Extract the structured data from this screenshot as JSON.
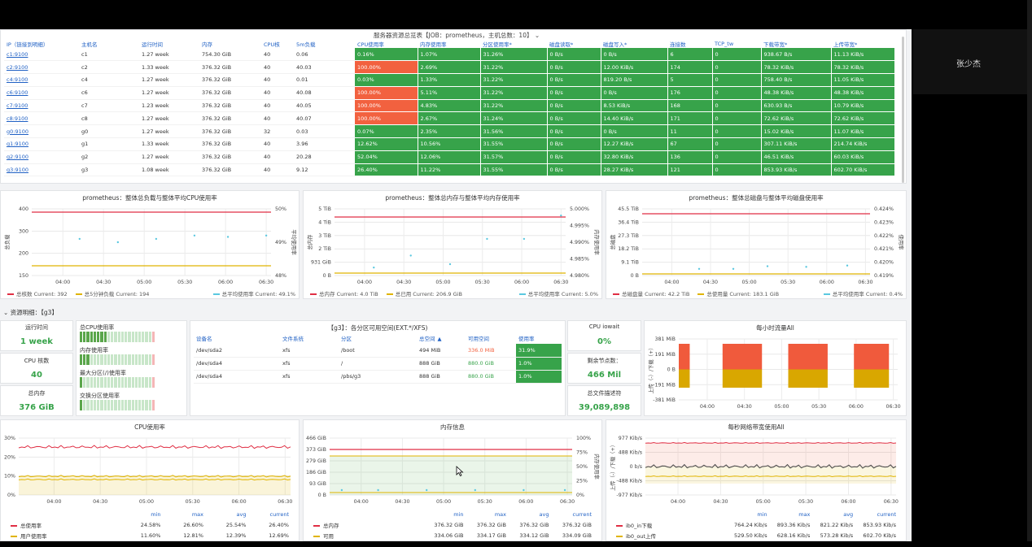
{
  "overlay": {
    "user_name": "张少杰"
  },
  "server_table": {
    "title": "服务器资源总览表【JOB：prometheus，主机总数：10】",
    "headers": [
      "IP（链接到明细）",
      "主机名",
      "运行时间",
      "内存",
      "CPU核",
      "5m负载",
      "CPU使用率",
      "内存使用率",
      "分区使用率*",
      "磁盘读取*",
      "磁盘写入*",
      "连接数",
      "TCP_tw",
      "下载带宽*",
      "上传带宽*"
    ],
    "rows": [
      [
        "c1:9100",
        "c1",
        "1.27 week",
        "754.30 GiB",
        "40",
        "0.06",
        "0.16%",
        "1.07%",
        "31.26%",
        "0 B/s",
        "0 B/s",
        "6",
        "0",
        "938.67 B/s",
        "11.13 KiB/s"
      ],
      [
        "c2:9100",
        "c2",
        "1.33 week",
        "376.32 GiB",
        "40",
        "40.03",
        "100.00%",
        "2.69%",
        "31.22%",
        "0 B/s",
        "12.00 KiB/s",
        "174",
        "0",
        "78.32 KiB/s",
        "78.32 KiB/s"
      ],
      [
        "c4:9100",
        "c4",
        "1.27 week",
        "376.32 GiB",
        "40",
        "0.01",
        "0.03%",
        "1.33%",
        "31.22%",
        "0 B/s",
        "819.20 B/s",
        "5",
        "0",
        "758.40 B/s",
        "11.05 KiB/s"
      ],
      [
        "c6:9100",
        "c6",
        "1.27 week",
        "376.32 GiB",
        "40",
        "40.08",
        "100.00%",
        "5.11%",
        "31.22%",
        "0 B/s",
        "0 B/s",
        "176",
        "0",
        "48.38 KiB/s",
        "48.38 KiB/s"
      ],
      [
        "c7:9100",
        "c7",
        "1.23 week",
        "376.32 GiB",
        "40",
        "40.05",
        "100.00%",
        "4.83%",
        "31.22%",
        "0 B/s",
        "8.53 KiB/s",
        "168",
        "0",
        "630.93 B/s",
        "10.79 KiB/s"
      ],
      [
        "c8:9100",
        "c8",
        "1.27 week",
        "376.32 GiB",
        "40",
        "40.07",
        "100.00%",
        "2.67%",
        "31.24%",
        "0 B/s",
        "14.40 KiB/s",
        "171",
        "0",
        "72.62 KiB/s",
        "72.62 KiB/s"
      ],
      [
        "g0:9100",
        "g0",
        "1.27 week",
        "376.32 GiB",
        "32",
        "0.03",
        "0.07%",
        "2.35%",
        "31.56%",
        "0 B/s",
        "0 B/s",
        "11",
        "0",
        "15.02 KiB/s",
        "11.07 KiB/s"
      ],
      [
        "g1:9100",
        "g1",
        "1.33 week",
        "376.32 GiB",
        "40",
        "3.96",
        "12.62%",
        "10.56%",
        "31.55%",
        "0 B/s",
        "12.27 KiB/s",
        "67",
        "0",
        "307.11 KiB/s",
        "214.74 KiB/s"
      ],
      [
        "g2:9100",
        "g2",
        "1.27 week",
        "376.32 GiB",
        "40",
        "20.28",
        "52.04%",
        "12.06%",
        "31.57%",
        "0 B/s",
        "32.80 KiB/s",
        "136",
        "0",
        "46.51 KiB/s",
        "60.03 KiB/s"
      ],
      [
        "g3:9100",
        "g3",
        "1.08 week",
        "376.32 GiB",
        "40",
        "9.12",
        "26.40%",
        "11.22%",
        "31.55%",
        "0 B/s",
        "28.27 KiB/s",
        "121",
        "0",
        "853.93 KiB/s",
        "602.70 KiB/s"
      ]
    ]
  },
  "overview_charts": [
    {
      "title": "prometheus：整体总负载与整体平均CPU使用率",
      "left_ticks": [
        "400",
        "300",
        "200",
        "150"
      ],
      "right_ticks": [
        "50%",
        "49%",
        "48%"
      ],
      "left_axis_label": "总负载",
      "right_axis_label": "平均使用率",
      "x_ticks": [
        "04:00",
        "04:30",
        "05:00",
        "05:30",
        "06:00",
        "06:30"
      ],
      "legend": [
        {
          "text": "总核数  Current: 392",
          "color": "#e02f44"
        },
        {
          "text": "总5分钟负载  Current: 194",
          "color": "#e0b400"
        },
        {
          "text": "总平均使用率  Current: 49.1%",
          "color": "#5ac8e0"
        }
      ]
    },
    {
      "title": "prometheus：整体总内存与整体平均内存使用率",
      "left_ticks": [
        "5 TiB",
        "4 TiB",
        "3 TiB",
        "2 TiB",
        "931 GiB",
        "0 B"
      ],
      "right_ticks": [
        "5.000%",
        "4.995%",
        "4.990%",
        "4.985%",
        "4.980%"
      ],
      "left_axis_label": "总内存",
      "right_axis_label": "内存使用率",
      "x_ticks": [
        "04:00",
        "04:30",
        "05:00",
        "05:30",
        "06:00",
        "06:30"
      ],
      "legend": [
        {
          "text": "总内存  Current: 4.0 TiB",
          "color": "#e02f44"
        },
        {
          "text": "总已用  Current: 206.9 GiB",
          "color": "#e0b400"
        },
        {
          "text": "总平均使用率  Current: 5.0%",
          "color": "#5ac8e0"
        }
      ]
    },
    {
      "title": "prometheus：整体总磁盘与整体平均磁盘使用率",
      "left_ticks": [
        "45.5 TiB",
        "36.4 TiB",
        "27.3 TiB",
        "18.2 TiB",
        "9.1 TiB",
        "0 B"
      ],
      "right_ticks": [
        "0.424%",
        "0.423%",
        "0.422%",
        "0.421%",
        "0.420%",
        "0.419%"
      ],
      "left_axis_label": "总磁盘",
      "right_axis_label": "使用率",
      "x_ticks": [
        "04:00",
        "04:30",
        "05:00",
        "05:30",
        "06:00",
        "06:30"
      ],
      "legend": [
        {
          "text": "总磁盘量  Current: 42.2 TiB",
          "color": "#e02f44"
        },
        {
          "text": "总使用量  Current: 183.1 GiB",
          "color": "#e0b400"
        },
        {
          "text": "总平均使用率  Current: 0.4%",
          "color": "#5ac8e0"
        }
      ]
    }
  ],
  "section": {
    "title": "资源明细：【g3】"
  },
  "stats": {
    "uptime_label": "运行时间",
    "uptime_value": "1 week",
    "cpu_cores_label": "CPU 核数",
    "cpu_cores_value": "40",
    "total_mem_label": "总内存",
    "total_mem_value": "376 GiB"
  },
  "bar_gauges": [
    {
      "label": "总CPU使用率",
      "value": "26.4%",
      "fraction": 0.264
    },
    {
      "label": "内存使用率",
      "value": "11.2%",
      "fraction": 0.112
    },
    {
      "label": "最大分区(/)使用率",
      "value": "1.0%",
      "fraction": 0.01
    },
    {
      "label": "交换分区使用率",
      "value": "0.1%",
      "fraction": 0.001
    }
  ],
  "partition_table": {
    "title": "【g3】：各分区可用空间(EXT.*/XFS)",
    "headers": [
      "设备名",
      "文件系统",
      "分区",
      "总空间",
      "可用空间",
      "使用率"
    ],
    "sort_indicator": "▲",
    "rows": [
      [
        "/dev/sda2",
        "xfs",
        "/boot",
        "494 MiB",
        "336.0 MiB",
        "31.9%"
      ],
      [
        "/dev/sda4",
        "xfs",
        "/",
        "888 GiB",
        "880.0 GiB",
        "1.0%"
      ],
      [
        "/dev/sda4",
        "xfs",
        "/pbs/g3",
        "888 GiB",
        "880.0 GiB",
        "1.0%"
      ]
    ]
  },
  "stats_right": {
    "iowait_label": "CPU iowait",
    "iowait_value": "0%",
    "inodes_label": "剩余节点数：",
    "inodes_value": "466 Mil",
    "fd_label": "总文件描述符",
    "fd_value": "39,089,898"
  },
  "hourly_traffic": {
    "title": "每小时流量All",
    "y_ticks": [
      "381 MiB",
      "191 MiB",
      "0 B",
      "-191 MiB",
      "-381 MiB"
    ],
    "y_label": "上传（-）/下载（+）",
    "x_ticks": [
      "04:00",
      "04:30",
      "05:00",
      "05:30",
      "06:00",
      "06:30"
    ]
  },
  "cpu_chart": {
    "title": "CPU使用率",
    "y_ticks": [
      "30%",
      "20%",
      "10%",
      "0%"
    ],
    "x_ticks": [
      "04:00",
      "04:30",
      "05:00",
      "05:30",
      "06:00",
      "06:30"
    ],
    "legend_headers": [
      "min",
      "max",
      "avg",
      "current"
    ],
    "legend_rows": [
      {
        "name": "总使用率",
        "color": "#e02f44",
        "vals": [
          "24.58%",
          "26.60%",
          "25.54%",
          "26.40%"
        ]
      },
      {
        "name": "用户使用率",
        "color": "#e0b400",
        "vals": [
          "11.60%",
          "12.81%",
          "12.39%",
          "12.69%"
        ]
      }
    ]
  },
  "mem_chart": {
    "title": "内存信息",
    "y_ticks": [
      "466 GiB",
      "373 GiB",
      "279 GiB",
      "186 GiB",
      "93 GiB",
      "0 B"
    ],
    "y2_ticks": [
      "100%",
      "75%",
      "50%",
      "25%",
      "0%"
    ],
    "y2_label": "内存使用率",
    "x_ticks": [
      "04:00",
      "04:30",
      "05:00",
      "05:30",
      "06:00",
      "06:30"
    ],
    "legend_headers": [
      "min",
      "max",
      "avg",
      "current"
    ],
    "legend_rows": [
      {
        "name": "总内存",
        "color": "#e02f44",
        "vals": [
          "376.32 GiB",
          "376.32 GiB",
          "376.32 GiB",
          "376.32 GiB"
        ]
      },
      {
        "name": "可用",
        "color": "#e0b400",
        "vals": [
          "334.06 GiB",
          "334.17 GiB",
          "334.12 GiB",
          "334.09 GiB"
        ]
      }
    ]
  },
  "net_chart": {
    "title": "每秒网络带宽使用All",
    "y_ticks": [
      "977 Kib/s",
      "488 Kib/s",
      "0 b/s",
      "-488 Kib/s",
      "-977 Kib/s"
    ],
    "y_label": "上传（-）/下载（+）",
    "x_ticks": [
      "04:00",
      "04:30",
      "05:00",
      "05:30",
      "06:00",
      "06:30"
    ],
    "legend_headers": [
      "min",
      "max",
      "avg",
      "current"
    ],
    "legend_rows": [
      {
        "name": "ib0_in下载",
        "color": "#e02f44",
        "vals": [
          "764.24 Kib/s",
          "893.36 Kib/s",
          "821.22 Kib/s",
          "853.93 Kib/s"
        ]
      },
      {
        "name": "ib0_out上传",
        "color": "#e0b400",
        "vals": [
          "529.50 Kib/s",
          "628.16 Kib/s",
          "573.28 Kib/s",
          "602.70 Kib/s"
        ]
      }
    ]
  }
}
